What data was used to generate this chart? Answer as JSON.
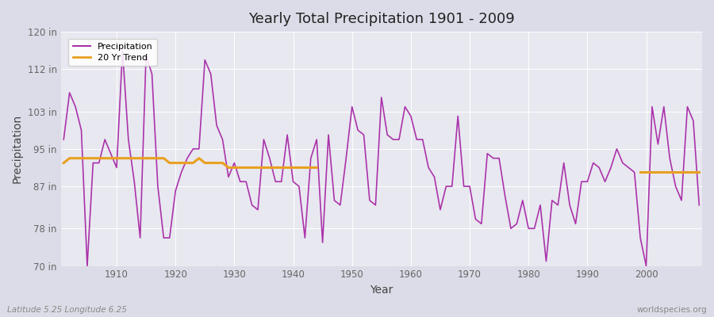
{
  "title": "Yearly Total Precipitation 1901 - 2009",
  "xlabel": "Year",
  "ylabel": "Precipitation",
  "source_label": "Latitude 5.25 Longitude 6.25",
  "website_label": "worldspecies.org",
  "ylim": [
    70,
    120
  ],
  "yticks": [
    70,
    78,
    87,
    95,
    103,
    112,
    120
  ],
  "ytick_labels": [
    "70 in",
    "78 in",
    "87 in",
    "95 in",
    "103 in",
    "112 in",
    "120 in"
  ],
  "xticks": [
    1910,
    1920,
    1930,
    1940,
    1950,
    1960,
    1970,
    1980,
    1990,
    2000
  ],
  "precip_color": "#aa33aa",
  "trend_color": "#e8a020",
  "fig_bg_color": "#dcdce8",
  "plot_bg_color": "#e8e8f0",
  "grid_color": "#ffffff",
  "years": [
    1901,
    1902,
    1903,
    1904,
    1905,
    1906,
    1907,
    1908,
    1909,
    1910,
    1911,
    1912,
    1913,
    1914,
    1915,
    1916,
    1917,
    1918,
    1919,
    1920,
    1921,
    1922,
    1923,
    1924,
    1925,
    1926,
    1927,
    1928,
    1929,
    1930,
    1931,
    1932,
    1933,
    1934,
    1935,
    1936,
    1937,
    1938,
    1939,
    1940,
    1941,
    1942,
    1943,
    1944,
    1945,
    1946,
    1947,
    1948,
    1949,
    1950,
    1951,
    1952,
    1953,
    1954,
    1955,
    1956,
    1957,
    1958,
    1959,
    1960,
    1961,
    1962,
    1963,
    1964,
    1965,
    1966,
    1967,
    1968,
    1969,
    1970,
    1971,
    1972,
    1973,
    1974,
    1975,
    1976,
    1977,
    1978,
    1979,
    1980,
    1981,
    1982,
    1983,
    1984,
    1985,
    1986,
    1987,
    1988,
    1989,
    1990,
    1991,
    1992,
    1993,
    1994,
    1995,
    1996,
    1997,
    1998,
    1999,
    2000,
    2001,
    2002,
    2003,
    2004,
    2005,
    2006,
    2007,
    2008,
    2009
  ],
  "precip": [
    97,
    107,
    104,
    99,
    70,
    92,
    92,
    97,
    94,
    91,
    116,
    97,
    88,
    76,
    115,
    111,
    87,
    76,
    76,
    86,
    90,
    93,
    95,
    95,
    114,
    111,
    100,
    97,
    89,
    92,
    88,
    88,
    83,
    82,
    97,
    93,
    88,
    88,
    98,
    88,
    87,
    76,
    93,
    97,
    75,
    98,
    84,
    83,
    93,
    104,
    99,
    98,
    84,
    83,
    106,
    98,
    97,
    97,
    104,
    102,
    97,
    97,
    91,
    89,
    82,
    87,
    87,
    102,
    87,
    87,
    80,
    79,
    94,
    93,
    93,
    85,
    78,
    79,
    84,
    78,
    78,
    83,
    71,
    84,
    83,
    92,
    83,
    79,
    88,
    88,
    92,
    91,
    88,
    91,
    95,
    92,
    91,
    90,
    76,
    70,
    104,
    96,
    104,
    93,
    87,
    84,
    104,
    101,
    83
  ],
  "trend_segments": [
    {
      "years": [
        1901,
        1902,
        1903,
        1904,
        1905,
        1906,
        1907,
        1908,
        1909,
        1910,
        1911,
        1912,
        1913,
        1914,
        1915,
        1916,
        1917,
        1918,
        1919,
        1920,
        1921,
        1922,
        1923,
        1924,
        1925,
        1926,
        1927,
        1928,
        1929,
        1930,
        1931,
        1932,
        1933,
        1934,
        1935,
        1936,
        1937,
        1938,
        1939,
        1940,
        1941,
        1942,
        1943,
        1944
      ],
      "values": [
        92,
        93,
        93,
        93,
        93,
        93,
        93,
        93,
        93,
        93,
        93,
        93,
        93,
        93,
        93,
        93,
        93,
        93,
        92,
        92,
        92,
        92,
        92,
        93,
        92,
        92,
        92,
        92,
        91,
        91,
        91,
        91,
        91,
        91,
        91,
        91,
        91,
        91,
        91,
        91,
        91,
        91,
        91,
        91
      ]
    },
    {
      "years": [
        1999,
        2000,
        2001,
        2002,
        2003,
        2004,
        2005,
        2006,
        2007,
        2008,
        2009
      ],
      "values": [
        90,
        90,
        90,
        90,
        90,
        90,
        90,
        90,
        90,
        90,
        90
      ]
    }
  ]
}
